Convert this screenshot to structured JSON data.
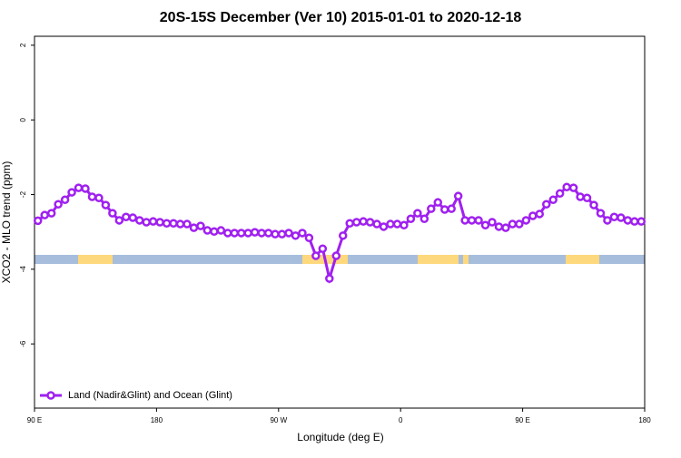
{
  "chart_data": {
    "type": "line",
    "title": "20S-15S December (Ver 10)   2015-01-01 to 2020-12-18",
    "x_label": "Longitude (deg E)",
    "y_label": "XCO2 - MLO trend (ppm)",
    "xlim": [
      90,
      540
    ],
    "ylim": [
      -7.72,
      2.24
    ],
    "xticks": [
      {
        "value": 90,
        "label": "90 E"
      },
      180,
      {
        "value": 270,
        "label": "90 W"
      },
      {
        "value": 360,
        "label": "0"
      },
      {
        "value": 450,
        "label": "90 E"
      },
      {
        "value": 540,
        "label": "180"
      }
    ],
    "yticks": [
      -6,
      -4,
      -2,
      0,
      2
    ],
    "legend": "bottom-left",
    "x": [
      92.5,
      97.5,
      102.5,
      107.5,
      112.5,
      117.5,
      122.5,
      127.5,
      132.5,
      137.5,
      142.5,
      147.5,
      152.5,
      157.5,
      162.5,
      167.5,
      172.5,
      177.5,
      182.5,
      187.5,
      192.5,
      197.5,
      202.5,
      207.5,
      212.5,
      217.5,
      222.5,
      227.5,
      232.5,
      237.5,
      242.5,
      247.5,
      252.5,
      257.5,
      262.5,
      267.5,
      272.5,
      277.5,
      282.5,
      287.5,
      292.5,
      297.5,
      302.5,
      307.5,
      312.5,
      317.5,
      322.5,
      327.5,
      332.5,
      337.5,
      342.5,
      347.5,
      352.5,
      357.5,
      362.5,
      367.5,
      372.5,
      377.5,
      382.5,
      387.5,
      392.5,
      397.5,
      402.5,
      407.5,
      412.5,
      417.5,
      422.5,
      427.5,
      432.5,
      437.5,
      442.5,
      447.5,
      452.5,
      457.5,
      462.5,
      467.5,
      472.5,
      477.5,
      482.5,
      487.5,
      492.5,
      497.5,
      502.5,
      507.5,
      512.5,
      517.5,
      522.5,
      527.5,
      532.5,
      537.5
    ],
    "series": [
      {
        "name": "Land (Nadir&Glint) and Ocean (Glint)",
        "color": "#a020f0",
        "values": [
          -2.7,
          -2.55,
          -2.5,
          -2.26,
          -2.14,
          -1.94,
          -1.82,
          -1.84,
          -2.06,
          -2.09,
          -2.28,
          -2.5,
          -2.69,
          -2.6,
          -2.62,
          -2.69,
          -2.74,
          -2.72,
          -2.74,
          -2.77,
          -2.77,
          -2.79,
          -2.79,
          -2.89,
          -2.84,
          -2.96,
          -2.99,
          -2.96,
          -3.03,
          -3.03,
          -3.03,
          -3.03,
          -3.01,
          -3.03,
          -3.03,
          -3.06,
          -3.06,
          -3.03,
          -3.1,
          -3.03,
          -3.16,
          -3.64,
          -3.45,
          -4.25,
          -3.64,
          -3.1,
          -2.77,
          -2.74,
          -2.72,
          -2.74,
          -2.79,
          -2.86,
          -2.79,
          -2.79,
          -2.82,
          -2.65,
          -2.5,
          -2.65,
          -2.38,
          -2.21,
          -2.4,
          -2.38,
          -2.04,
          -2.69,
          -2.69,
          -2.69,
          -2.82,
          -2.74,
          -2.86,
          -2.89,
          -2.79,
          -2.79,
          -2.69,
          -2.57,
          -2.52,
          -2.26,
          -2.14,
          -1.97,
          -1.8,
          -1.82,
          -2.06,
          -2.09,
          -2.28,
          -2.5,
          -2.69,
          -2.6,
          -2.62,
          -2.69,
          -2.72,
          -2.72
        ]
      }
    ]
  }
}
